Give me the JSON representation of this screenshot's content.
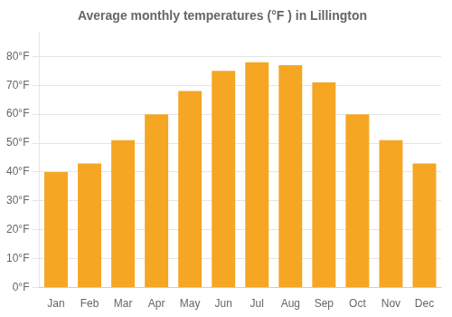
{
  "chart_data": {
    "type": "bar",
    "title": "Average monthly temperatures (°F ) in Lillington",
    "categories": [
      "Jan",
      "Feb",
      "Mar",
      "Apr",
      "May",
      "Jun",
      "Jul",
      "Aug",
      "Sep",
      "Oct",
      "Nov",
      "Dec"
    ],
    "values": [
      40,
      43,
      51,
      60,
      68,
      75,
      78,
      77,
      71,
      60,
      51,
      43
    ],
    "color": "#F5A623",
    "ylim": [
      0,
      88
    ],
    "yticks": [
      {
        "value": 0,
        "label": "0°F"
      },
      {
        "value": 10,
        "label": "10°F"
      },
      {
        "value": 20,
        "label": "20°F"
      },
      {
        "value": 30,
        "label": "30°F"
      },
      {
        "value": 40,
        "label": "40°F"
      },
      {
        "value": 50,
        "label": "50°F"
      },
      {
        "value": 60,
        "label": "60°F"
      },
      {
        "value": 70,
        "label": "70°F"
      },
      {
        "value": 80,
        "label": "80°F"
      }
    ],
    "grid": true
  }
}
